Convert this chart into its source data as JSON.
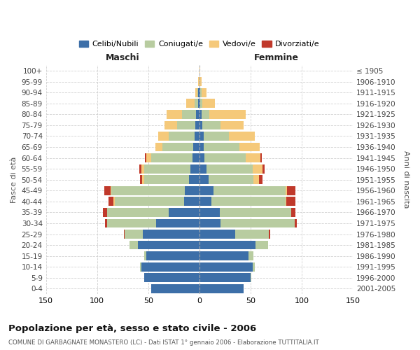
{
  "age_groups": [
    "0-4",
    "5-9",
    "10-14",
    "15-19",
    "20-24",
    "25-29",
    "30-34",
    "35-39",
    "40-44",
    "45-49",
    "50-54",
    "55-59",
    "60-64",
    "65-69",
    "70-74",
    "75-79",
    "80-84",
    "85-89",
    "90-94",
    "95-99",
    "100+"
  ],
  "birth_years": [
    "2001-2005",
    "1996-2000",
    "1991-1995",
    "1986-1990",
    "1981-1985",
    "1976-1980",
    "1971-1975",
    "1966-1970",
    "1961-1965",
    "1956-1960",
    "1951-1955",
    "1946-1950",
    "1941-1945",
    "1936-1940",
    "1931-1935",
    "1926-1930",
    "1921-1925",
    "1916-1920",
    "1911-1915",
    "1906-1910",
    "≤ 1905"
  ],
  "male_celibi": [
    47,
    54,
    57,
    52,
    60,
    55,
    42,
    30,
    15,
    14,
    10,
    9,
    7,
    6,
    5,
    4,
    3,
    1,
    1,
    0,
    0
  ],
  "male_coniugati": [
    0,
    0,
    1,
    2,
    8,
    18,
    48,
    60,
    68,
    72,
    44,
    45,
    40,
    30,
    25,
    18,
    14,
    4,
    1,
    0,
    0
  ],
  "male_vedovi": [
    0,
    0,
    0,
    0,
    0,
    0,
    0,
    0,
    1,
    1,
    2,
    3,
    5,
    7,
    10,
    12,
    15,
    8,
    2,
    1,
    0
  ],
  "male_divorziati": [
    0,
    0,
    0,
    0,
    0,
    1,
    2,
    4,
    5,
    6,
    2,
    2,
    1,
    0,
    0,
    0,
    0,
    0,
    0,
    0,
    0
  ],
  "female_celibi": [
    43,
    50,
    52,
    48,
    55,
    35,
    21,
    20,
    12,
    14,
    9,
    7,
    5,
    4,
    4,
    3,
    2,
    1,
    1,
    0,
    0
  ],
  "female_coniugati": [
    0,
    1,
    2,
    5,
    12,
    33,
    72,
    70,
    72,
    70,
    44,
    45,
    40,
    35,
    25,
    18,
    8,
    2,
    1,
    0,
    0
  ],
  "female_vedovi": [
    0,
    0,
    0,
    0,
    0,
    0,
    0,
    0,
    1,
    2,
    5,
    10,
    15,
    20,
    25,
    22,
    35,
    12,
    5,
    2,
    1
  ],
  "female_divorziati": [
    0,
    0,
    0,
    0,
    0,
    1,
    2,
    4,
    9,
    8,
    4,
    2,
    1,
    0,
    0,
    0,
    0,
    0,
    0,
    0,
    0
  ],
  "color_celibi": "#3d6fa8",
  "color_coniugati": "#b8cca0",
  "color_vedovi": "#f5c97a",
  "color_divorziati": "#c0392b",
  "title": "Popolazione per età, sesso e stato civile - 2006",
  "subtitle": "COMUNE DI GARBAGNATE MONASTERO (LC) - Dati ISTAT 1° gennaio 2006 - Elaborazione TUTTITALIA.IT",
  "xlabel_left": "Maschi",
  "xlabel_right": "Femmine",
  "ylabel_left": "Fasce di età",
  "ylabel_right": "Anni di nascita",
  "xlim": 150,
  "background_color": "#ffffff",
  "grid_color": "#cccccc"
}
